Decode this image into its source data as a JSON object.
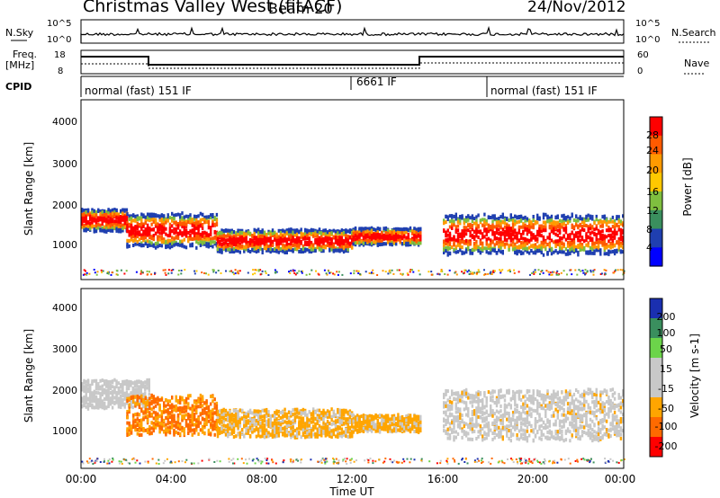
{
  "header": {
    "title": "Christmas Valley West (fitACF)",
    "beam": "Beam 20",
    "date": "24/Nov/2012"
  },
  "nsky_panel": {
    "left_label": "N.Sky",
    "right_label": "N.Search",
    "left_ticks": [
      "10^5",
      "10^0"
    ],
    "right_ticks": [
      "10^5",
      "10^0"
    ]
  },
  "freq_panel": {
    "left_label_1": "Freq.",
    "left_label_2": "[MHz]",
    "right_label": "Nave",
    "left_ticks": [
      "18",
      "8"
    ],
    "right_ticks": [
      "60",
      "0"
    ]
  },
  "cpid": {
    "label": "CPID",
    "segments": [
      {
        "text": "normal (fast) 151 IF"
      },
      {
        "text": "6661 IF"
      },
      {
        "text": "normal (fast) 151 IF"
      }
    ]
  },
  "x_axis": {
    "title": "Time UT",
    "ticks": [
      "00:00",
      "04:00",
      "08:00",
      "12:00",
      "16:00",
      "20:00",
      "00:00"
    ]
  },
  "power_panel": {
    "ylabel": "Slant Range [km]",
    "yticks": [
      "4000",
      "3000",
      "2000",
      "1000"
    ],
    "colorbar_label": "Power [dB]",
    "colorbar_ticks": [
      "28",
      "24",
      "20",
      "16",
      "12",
      "8",
      "4"
    ],
    "colors": [
      "#ff0000",
      "#ff5a00",
      "#ff9a00",
      "#ffc800",
      "#7fbf3f",
      "#3a8f5e",
      "#1f3fb0",
      "#0000ff"
    ]
  },
  "velocity_panel": {
    "ylabel": "Slant Range [km]",
    "yticks": [
      "4000",
      "3000",
      "2000",
      "1000"
    ],
    "colorbar_label": "Velocity [m s-1]",
    "colorbar_ticks": [
      "200",
      "100",
      "50",
      "15",
      "-15",
      "-50",
      "-100",
      "-200"
    ],
    "colors": [
      "#1a2fb0",
      "#3a8f5e",
      "#6cd44a",
      "#c8c8c8",
      "#c8c8c8",
      "#ffa500",
      "#ff6a00",
      "#ff0000"
    ]
  },
  "chart_data": [
    {
      "type": "heatmap",
      "title": "Power",
      "xlabel": "Time UT",
      "ylabel": "Slant Range [km]",
      "xlim": [
        0,
        24
      ],
      "ylim": [
        180,
        4500
      ],
      "colorbar": {
        "label": "Power [dB]",
        "range": [
          0,
          30
        ]
      },
      "bands": [
        {
          "t_start": 0,
          "t_end": 2,
          "range_center": 1650,
          "range_width": 400,
          "power_db": 28
        },
        {
          "t_start": 2,
          "t_end": 6,
          "range_center": 1400,
          "range_width": 600,
          "power_db": 24
        },
        {
          "t_start": 6,
          "t_end": 12,
          "range_center": 1150,
          "range_width": 400,
          "power_db": 28
        },
        {
          "t_start": 12,
          "t_end": 15,
          "range_center": 1250,
          "range_width": 300,
          "power_db": 20
        },
        {
          "t_start": 16,
          "t_end": 24,
          "range_center": 1300,
          "range_width": 700,
          "power_db": 28
        }
      ]
    },
    {
      "type": "heatmap",
      "title": "Velocity",
      "xlabel": "Time UT",
      "ylabel": "Slant Range [km]",
      "xlim": [
        0,
        24
      ],
      "ylim": [
        180,
        4500
      ],
      "colorbar": {
        "label": "Velocity [m s-1]",
        "range": [
          -200,
          200
        ]
      },
      "bands": [
        {
          "t_start": 0,
          "t_end": 3,
          "range_center": 2000,
          "range_width": 500,
          "velocity": -15
        },
        {
          "t_start": 2,
          "t_end": 6,
          "range_center": 1500,
          "range_width": 700,
          "velocity": -100
        },
        {
          "t_start": 6,
          "t_end": 12,
          "range_center": 1300,
          "range_width": 500,
          "velocity": -50
        },
        {
          "t_start": 12,
          "t_end": 15,
          "range_center": 1300,
          "range_width": 300,
          "velocity": -50
        },
        {
          "t_start": 16,
          "t_end": 24,
          "range_center": 1500,
          "range_width": 900,
          "velocity": 0
        }
      ]
    }
  ]
}
